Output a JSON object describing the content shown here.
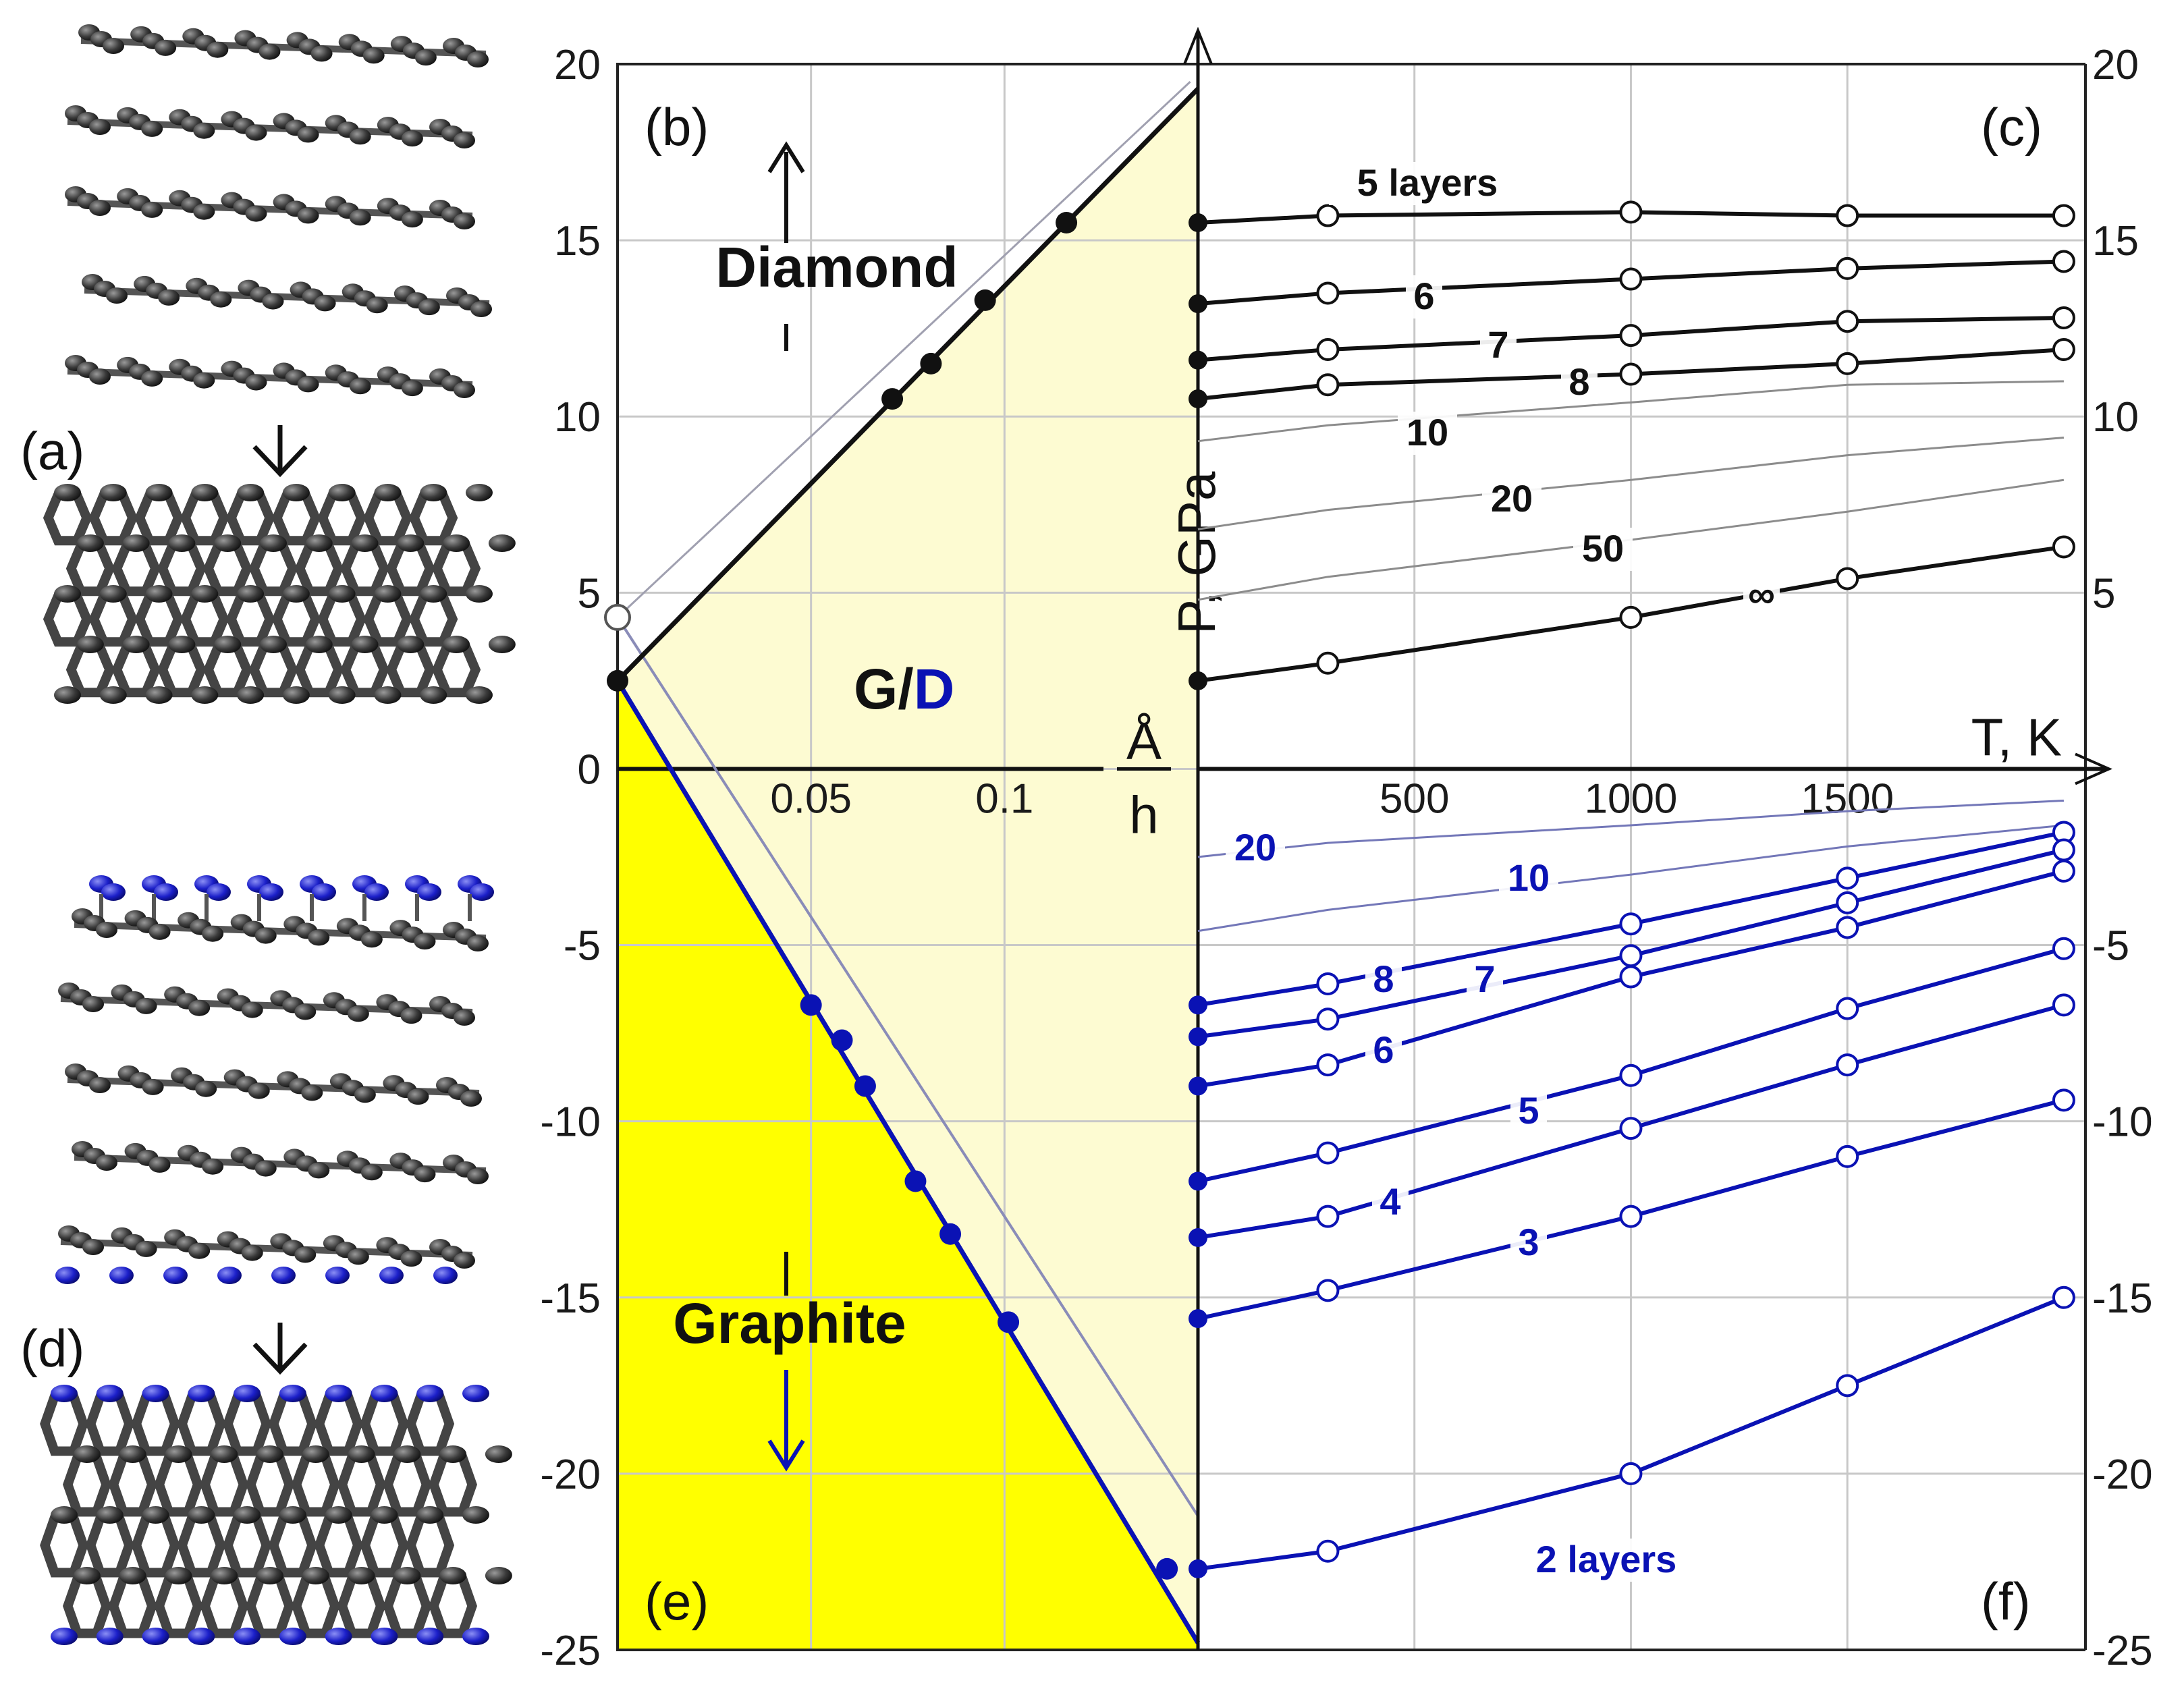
{
  "panel_labels": {
    "a": "(a)",
    "b": "(b)",
    "c": "(c)",
    "d": "(d)",
    "e": "(e)",
    "f": "(f)"
  },
  "colors": {
    "black_series": "#111111",
    "blue_series": "#0a12b4",
    "light_yellow": "#fdfbd2",
    "yellow": "#ffff00",
    "grid": "#c8c8c8",
    "atom_black": "#333333",
    "atom_blue": "#1b1fc9"
  },
  "chart_data": [
    {
      "id": "left-panel",
      "type": "line",
      "panels": [
        "(b)",
        "(e)"
      ],
      "x_label_top": "Å",
      "x_label_bottom": "h",
      "xlim": [
        0,
        0.15
      ],
      "ylim": [
        -25,
        20
      ],
      "x_ticks": [
        0.05,
        0.1
      ],
      "y_ticks": [
        -25,
        -20,
        -15,
        -10,
        -5,
        0,
        5,
        10,
        15,
        20
      ],
      "regions": {
        "upper": "Diamond",
        "middle_g": "G",
        "middle_sep": "/",
        "middle_d": "D",
        "lower": "Graphite"
      },
      "series": [
        {
          "name": "diamond boundary",
          "color": "black",
          "points": [
            [
              0.071,
              10.5
            ],
            [
              0.081,
              11.5
            ],
            [
              0.095,
              13.3
            ],
            [
              0.116,
              15.5
            ]
          ],
          "line": [
            [
              0,
              2.5
            ],
            [
              0.15,
              19.3
            ]
          ]
        },
        {
          "name": "graphite boundary",
          "color": "blue",
          "points": [
            [
              0.05,
              -6.7
            ],
            [
              0.058,
              -7.7
            ],
            [
              0.064,
              -9.0
            ],
            [
              0.077,
              -11.7
            ],
            [
              0.086,
              -13.2
            ],
            [
              0.101,
              -15.7
            ],
            [
              0.142,
              -22.7
            ]
          ],
          "line": [
            [
              0,
              2.5
            ],
            [
              0.15,
              -24.8
            ]
          ]
        }
      ],
      "reference_point": {
        "x": 0,
        "y": 4.3
      }
    },
    {
      "id": "right-panel",
      "type": "line",
      "panels": [
        "(c)",
        "(f)"
      ],
      "xlabel": "T, K",
      "ylabel": "P, GPa",
      "xlim": [
        0,
        2050
      ],
      "ylim": [
        -25,
        20
      ],
      "x_ticks": [
        500,
        1000,
        1500
      ],
      "y_ticks_right": [
        -25,
        -20,
        -15,
        -10,
        -5,
        5,
        10,
        15,
        20
      ],
      "x": [
        0,
        300,
        1000,
        1500,
        2000
      ],
      "black_series": [
        {
          "name": "5 layers",
          "label": "5 layers",
          "values": [
            15.5,
            15.7,
            15.8,
            15.7,
            15.7
          ]
        },
        {
          "name": "6",
          "label": "6",
          "values": [
            13.2,
            13.5,
            13.9,
            14.2,
            14.4
          ]
        },
        {
          "name": "7",
          "label": "7",
          "values": [
            11.6,
            11.9,
            12.3,
            12.7,
            12.8
          ]
        },
        {
          "name": "8",
          "label": "8",
          "values": [
            10.5,
            10.9,
            11.2,
            11.5,
            11.9
          ]
        },
        {
          "name": "∞",
          "label": "∞",
          "values": [
            2.5,
            3.0,
            4.3,
            5.4,
            6.3
          ]
        }
      ],
      "gray_series": [
        {
          "name": "10",
          "label": "10",
          "values": [
            9.3,
            9.75,
            10.4,
            10.9,
            11.0
          ]
        },
        {
          "name": "20",
          "label": "20",
          "values": [
            6.8,
            7.35,
            8.2,
            8.9,
            9.4
          ]
        },
        {
          "name": "50",
          "label": "50",
          "values": [
            4.8,
            5.45,
            6.5,
            7.3,
            8.2
          ]
        },
        {
          "name": "20 (negative)",
          "label": "20",
          "values": [
            -2.5,
            -2.1,
            -1.6,
            -1.2,
            -0.9
          ]
        },
        {
          "name": "10 (negative)",
          "label": "10",
          "values": [
            -4.6,
            -4.0,
            -3.0,
            -2.2,
            -1.6
          ]
        }
      ],
      "blue_series": [
        {
          "name": "8",
          "label": "8",
          "values": [
            -6.7,
            -6.1,
            -4.4,
            -3.1,
            -1.8
          ]
        },
        {
          "name": "7",
          "label": "7",
          "values": [
            -7.6,
            -7.1,
            -5.3,
            -3.8,
            -2.3
          ]
        },
        {
          "name": "6",
          "label": "6",
          "values": [
            -9.0,
            -8.4,
            -5.9,
            -4.5,
            -2.9
          ]
        },
        {
          "name": "5",
          "label": "5",
          "values": [
            -11.7,
            -10.9,
            -8.7,
            -6.8,
            -5.1
          ]
        },
        {
          "name": "4",
          "label": "4",
          "values": [
            -13.3,
            -12.7,
            -10.2,
            -8.4,
            -6.7
          ]
        },
        {
          "name": "3",
          "label": "3",
          "values": [
            -15.6,
            -14.8,
            -12.7,
            -11.0,
            -9.4
          ]
        },
        {
          "name": "2 layers",
          "label": "2 layers",
          "values": [
            -22.7,
            -22.2,
            -20.0,
            -17.5,
            -15.0
          ]
        }
      ]
    }
  ]
}
